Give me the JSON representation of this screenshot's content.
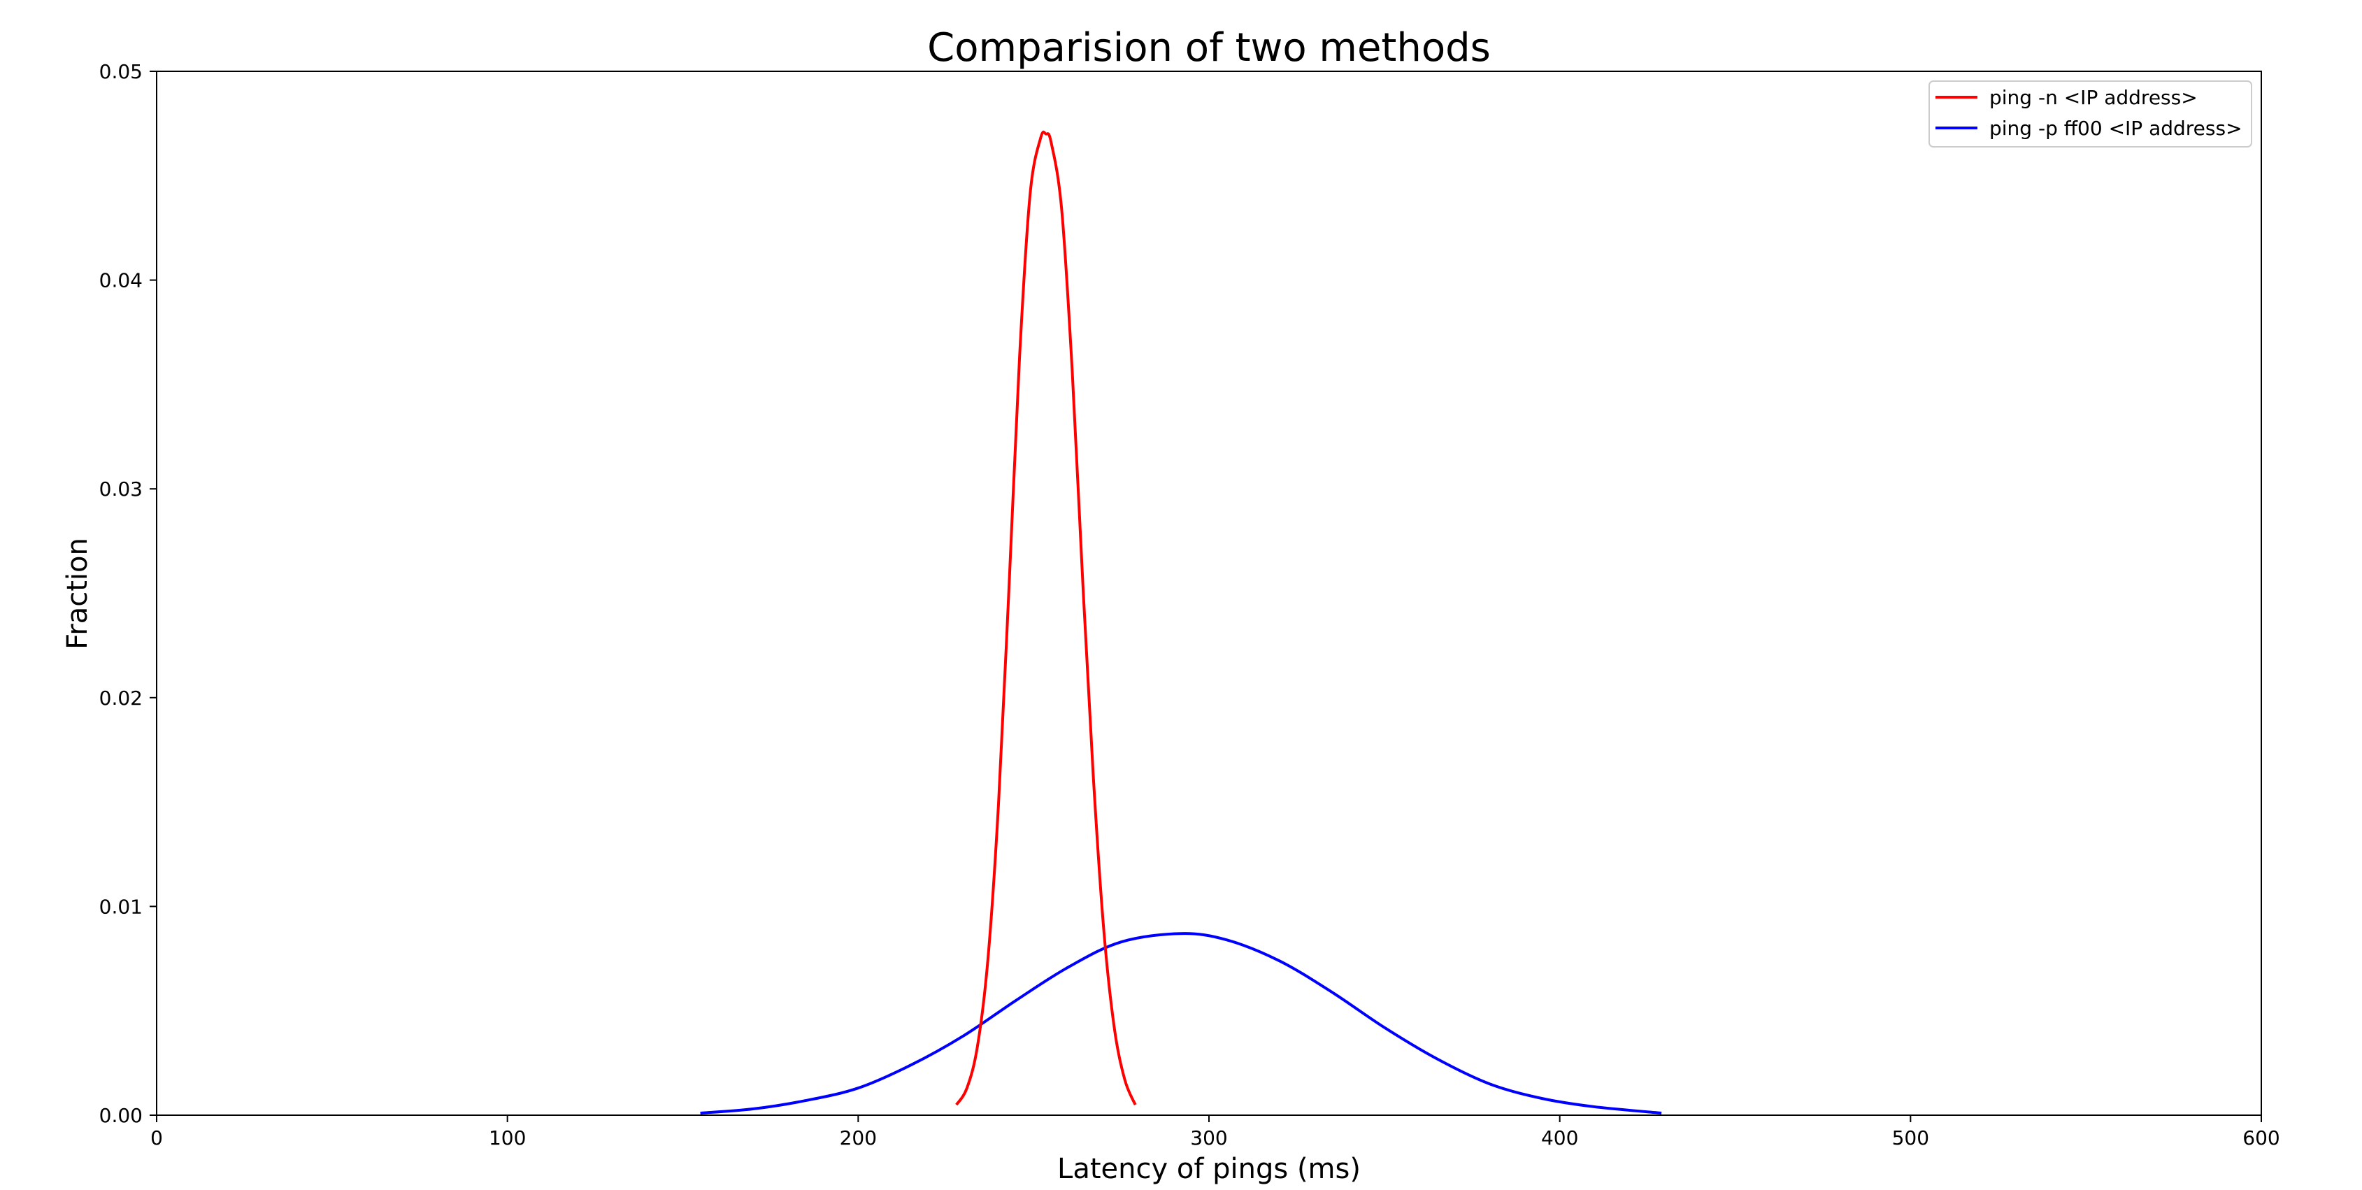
{
  "chart_data": {
    "type": "line",
    "title": "Comparision of two methods",
    "xlabel": "Latency of pings (ms)",
    "ylabel": "Fraction",
    "xlim": [
      0,
      600
    ],
    "ylim": [
      0,
      0.05
    ],
    "x_ticks": [
      0,
      100,
      200,
      300,
      400,
      500,
      600
    ],
    "x_tick_labels": [
      "0",
      "100",
      "200",
      "300",
      "400",
      "500",
      "600"
    ],
    "y_ticks": [
      0.0,
      0.01,
      0.02,
      0.03,
      0.04,
      0.05
    ],
    "y_tick_labels": [
      "0.00",
      "0.01",
      "0.02",
      "0.03",
      "0.04",
      "0.05"
    ],
    "grid": false,
    "legend_position": "top-right",
    "series": [
      {
        "name": "ping -n <IP address>",
        "color": "#ff0000",
        "x": [
          228,
          231,
          234,
          237,
          240,
          243,
          246,
          249,
          252,
          253.5,
          255,
          258,
          261,
          264,
          267,
          270,
          273,
          276,
          279
        ],
        "y": [
          0.0005,
          0.0013,
          0.0033,
          0.0075,
          0.0149,
          0.0253,
          0.0363,
          0.0441,
          0.0468,
          0.047,
          0.0466,
          0.0434,
          0.0357,
          0.0256,
          0.0163,
          0.0089,
          0.0042,
          0.0017,
          0.0005
        ]
      },
      {
        "name": "ping -p ff00 <IP address>",
        "color": "#0000ff",
        "x": [
          155,
          170,
          185,
          200,
          215,
          230,
          245,
          260,
          275,
          292,
          305,
          320,
          335,
          350,
          365,
          380,
          395,
          410,
          429
        ],
        "y": [
          0.0001,
          0.0003,
          0.0007,
          0.0013,
          0.0024,
          0.0038,
          0.0055,
          0.0071,
          0.0083,
          0.0087,
          0.0084,
          0.0074,
          0.0059,
          0.0042,
          0.0027,
          0.0015,
          0.0008,
          0.0004,
          0.0001
        ]
      }
    ]
  }
}
